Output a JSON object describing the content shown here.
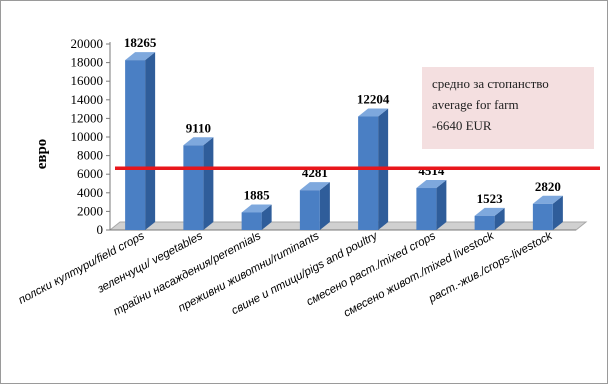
{
  "chart_data": {
    "type": "bar",
    "categories": [
      "полски култури/field crops",
      "зеленчуци/ vegetables",
      "трайни насаждения/perennials",
      "преживни животни/ruminants",
      "свине и птици/pigs and poultry",
      "смесено раст./mixed crops",
      "смесено живот./mixed livestock",
      "раст.-жив./crops-livestock"
    ],
    "values": [
      18265,
      9110,
      1885,
      4281,
      12204,
      4514,
      1523,
      2820
    ],
    "value_labels": [
      "18265",
      "9110",
      "1885",
      "4281",
      "12204",
      "4514",
      "1523",
      "2820"
    ],
    "ylabel": "евро",
    "ylim": [
      0,
      20000
    ],
    "yticks": [
      0,
      2000,
      4000,
      6000,
      8000,
      10000,
      12000,
      14000,
      16000,
      18000,
      20000
    ],
    "ytick_labels": [
      "0",
      "2000",
      "4000",
      "6000",
      "8000",
      "10000",
      "12000",
      "14000",
      "16000",
      "18000",
      "20000"
    ],
    "reference_line": {
      "value": 6640
    },
    "annotation": {
      "line1": "средно за стопанство",
      "line2": "average for farm",
      "line3": "-6640  EUR"
    },
    "colors": {
      "bar_front": "#4a7fc4",
      "bar_side": "#2f5d9a",
      "bar_top": "#7ea8dd",
      "reference_line": "#e8161b",
      "annotation_box": "#f4dfe0",
      "floor": "#d0d0d0"
    },
    "grid": false,
    "style": "3d-column"
  }
}
